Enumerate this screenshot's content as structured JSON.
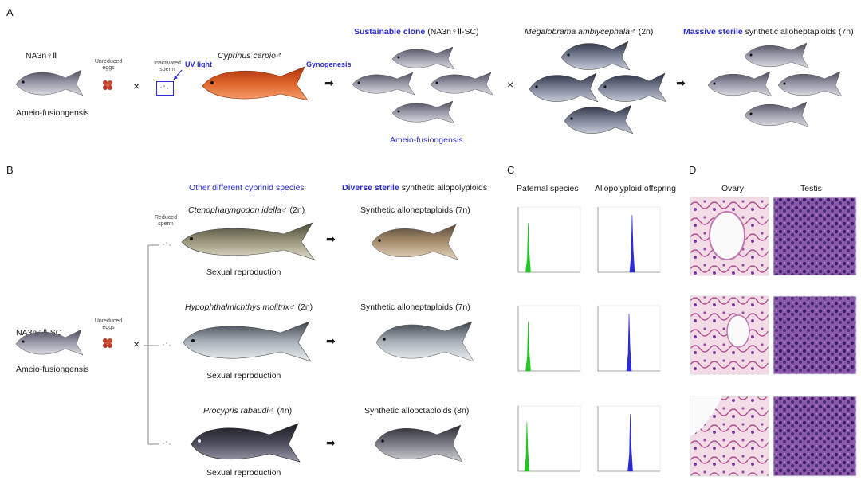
{
  "panels": {
    "a": "A",
    "b": "B",
    "c": "C",
    "d": "D"
  },
  "panel_a": {
    "female_label": "NA3n♀Ⅱ",
    "female_caption": "Ameio-fusiongensis",
    "eggs_label": "Unreduced\neggs",
    "cross1": "×",
    "sperm_label": "Inactivated\nsperm",
    "uv_label": "UV light",
    "male_species": "Cyprinus carpio",
    "male_symbol": "♂",
    "gynogenesis": "Gynogenesis",
    "arrow1": "➡",
    "clone_title_blue": "Sustainable clone",
    "clone_title_rest": "(NA3n♀Ⅱ-SC)",
    "clone_caption": "Ameio-fusiongensis",
    "cross2": "×",
    "bream_species": "Megalobrama amblycephala",
    "bream_suffix": "♂ (2n)",
    "arrow2": "➡",
    "result_blue": "Massive sterile",
    "result_rest": " synthetic alloheptaploids (7n)"
  },
  "panel_b": {
    "header_species": "Other different cyprinid species",
    "header_offspring_blue": "Diverse sterile",
    "header_offspring_rest": " synthetic allopolyploids",
    "female_label": "NA3n♀Ⅱ-SC",
    "female_caption": "Ameio-fusiongensis",
    "eggs_label": "Unreduced\neggs",
    "cross": "×",
    "sperm_label": "Reduced\nsperm",
    "rows": [
      {
        "species": "Ctenopharyngodon idella",
        "suffix": "♂ (2n)",
        "caption": "Sexual reproduction",
        "arrow": "➡",
        "offspring": "Synthetic alloheptaploids (7n)"
      },
      {
        "species": "Hypophthalmichthys molitrix",
        "suffix": "♂ (2n)",
        "caption": "Sexual reproduction",
        "arrow": "➡",
        "offspring": "Synthetic alloheptaploids (7n)"
      },
      {
        "species": "Procypris rabaudi",
        "suffix": "♂ (4n)",
        "caption": "Sexual reproduction",
        "arrow": "➡",
        "offspring": "Synthetic allooctaploids (8n)"
      }
    ]
  },
  "panel_c": {
    "col_paternal": "Paternal species",
    "col_offspring": "Allopolyploid offspring",
    "paternal_color": "#22c522",
    "offspring_color": "#2b2bd9"
  },
  "panel_d": {
    "col_ovary": "Ovary",
    "col_testis": "Testis"
  },
  "colors": {
    "accent_blue": "#2b2bd9",
    "carp_orange": "#d8561c",
    "egg_red": "#c0392b"
  }
}
